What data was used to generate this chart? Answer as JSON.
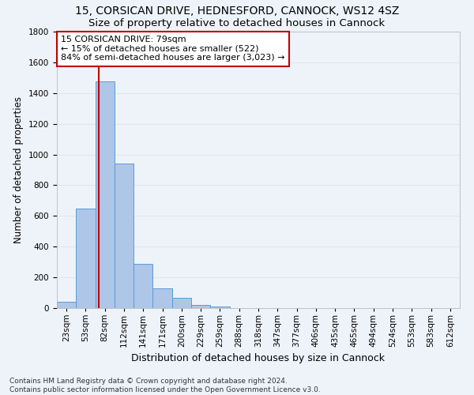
{
  "title_line1": "15, CORSICAN DRIVE, HEDNESFORD, CANNOCK, WS12 4SZ",
  "title_line2": "Size of property relative to detached houses in Cannock",
  "xlabel": "Distribution of detached houses by size in Cannock",
  "ylabel": "Number of detached properties",
  "categories": [
    "23sqm",
    "53sqm",
    "82sqm",
    "112sqm",
    "141sqm",
    "171sqm",
    "200sqm",
    "229sqm",
    "259sqm",
    "288sqm",
    "318sqm",
    "347sqm",
    "377sqm",
    "406sqm",
    "435sqm",
    "465sqm",
    "494sqm",
    "524sqm",
    "553sqm",
    "583sqm",
    "612sqm"
  ],
  "bar_values": [
    40,
    650,
    1475,
    940,
    290,
    130,
    68,
    22,
    8,
    2,
    0,
    0,
    0,
    0,
    0,
    0,
    0,
    0,
    0,
    0,
    0
  ],
  "bar_color": "#aec6e8",
  "bar_edge_color": "#5b9bd5",
  "vline_color": "#c00000",
  "vline_x_index": 2,
  "annotation_text": "15 CORSICAN DRIVE: 79sqm\n← 15% of detached houses are smaller (522)\n84% of semi-detached houses are larger (3,023) →",
  "annotation_box_color": "#ffffff",
  "annotation_box_edge_color": "#c00000",
  "ylim": [
    0,
    1800
  ],
  "yticks": [
    0,
    200,
    400,
    600,
    800,
    1000,
    1200,
    1400,
    1600,
    1800
  ],
  "grid_color": "#dce6f1",
  "background_color": "#eef3fa",
  "footnote": "Contains HM Land Registry data © Crown copyright and database right 2024.\nContains public sector information licensed under the Open Government Licence v3.0.",
  "title_fontsize": 10,
  "subtitle_fontsize": 9.5,
  "xlabel_fontsize": 9,
  "ylabel_fontsize": 8.5,
  "tick_fontsize": 7.5,
  "annotation_fontsize": 8,
  "footnote_fontsize": 6.5
}
